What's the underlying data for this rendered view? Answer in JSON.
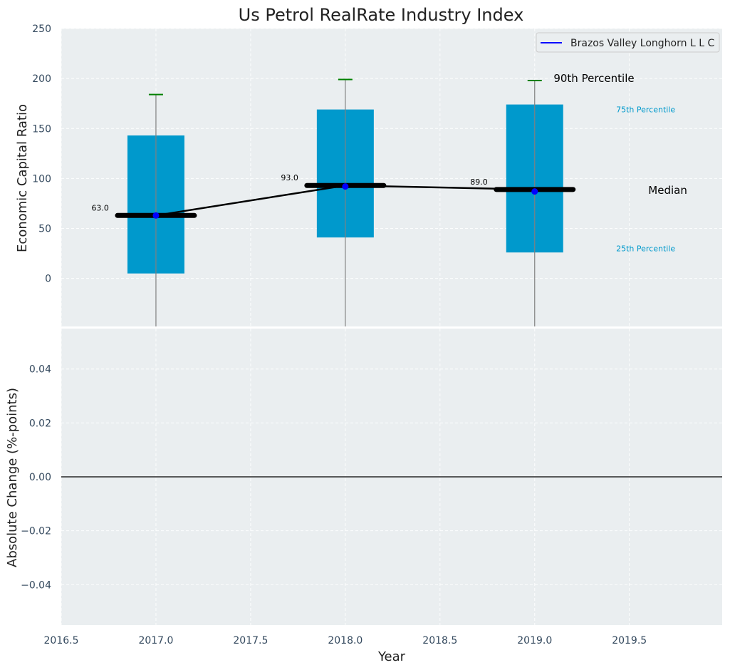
{
  "chart_data": [
    {
      "type": "box",
      "title": "Us Petrol RealRate Industry Index",
      "ylabel": "Economic Capital Ratio",
      "xlim": [
        2016.5,
        2019.99
      ],
      "ylim": [
        -48,
        250
      ],
      "yticks": [
        0,
        50,
        100,
        150,
        200,
        250
      ],
      "grid": true,
      "legend": {
        "placement": "top-right",
        "entries": [
          "Brazos Valley Longhorn L L C"
        ]
      },
      "series": [
        {
          "name": "Brazos Valley Longhorn L L C",
          "x": [
            2017,
            2018,
            2019
          ],
          "values": [
            63,
            92,
            87
          ],
          "color": "#0000ff"
        }
      ],
      "boxes": [
        {
          "x": 2017,
          "p25": 5,
          "median": 63,
          "p75": 143,
          "p90": 184,
          "median_label": "63.0"
        },
        {
          "x": 2018,
          "p25": 41,
          "median": 93,
          "p75": 169,
          "p90": 199,
          "median_label": "93.0"
        },
        {
          "x": 2019,
          "p25": 26,
          "median": 89,
          "p75": 174,
          "p90": 198,
          "median_label": "89.0"
        }
      ],
      "annotations": {
        "p90": "90th Percentile",
        "p75": "75th Percentile",
        "median": "Median",
        "p25": "25th Percentile"
      }
    },
    {
      "type": "line",
      "ylabel": "Absolute Change (%-points)",
      "xlabel": "Year",
      "xlim": [
        2016.5,
        2019.99
      ],
      "ylim": [
        -0.055,
        0.055
      ],
      "xticks": [
        "2016.5",
        "2017.0",
        "2017.5",
        "2018.0",
        "2018.5",
        "2019.0",
        "2019.5"
      ],
      "yticks": [
        "0.04",
        "0.02",
        "0.00",
        "−0.02",
        "−0.04"
      ],
      "reference_line": 0,
      "grid": true
    }
  ],
  "colors": {
    "plot_bg": "#eaeef0",
    "box_fill": "#0099cc",
    "median_bar": "#000000",
    "whisker_cap": "#008000",
    "series_line": "#0000ff",
    "tick_text": "#34495e",
    "annotation_blue": "#0099cc"
  }
}
